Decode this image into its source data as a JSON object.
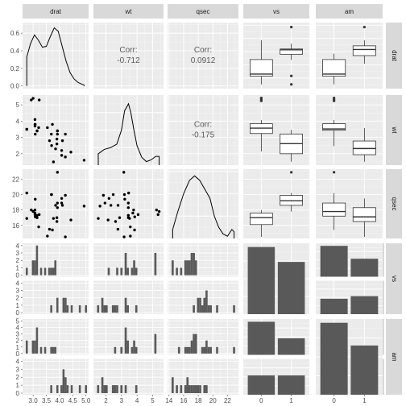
{
  "chart_data": {
    "type": "scatter",
    "variables": [
      "drat",
      "wt",
      "qsec",
      "vs",
      "am"
    ],
    "correlations": [
      {
        "row": "drat",
        "col": "wt",
        "label": "Corr:",
        "value": "-0.712"
      },
      {
        "row": "drat",
        "col": "qsec",
        "label": "Corr:",
        "value": "0.0912"
      },
      {
        "row": "wt",
        "col": "qsec",
        "label": "Corr:",
        "value": "-0.175"
      }
    ],
    "tick_labels": {
      "x": {
        "drat": [
          "3.0",
          "3.5",
          "4.0",
          "4.5",
          "5.0"
        ],
        "wt": [
          "2",
          "3",
          "4",
          "5"
        ],
        "qsec": [
          "14",
          "16",
          "18",
          "20",
          "22"
        ],
        "vs": [
          "0",
          "1"
        ],
        "am": [
          "0",
          "1"
        ]
      },
      "y": {
        "drat": [
          "0.0",
          "0.2",
          "0.4",
          "0.6"
        ],
        "wt": [
          "2",
          "3",
          "4",
          "5"
        ],
        "qsec": [
          "16",
          "18",
          "20",
          "22"
        ],
        "vs_0": [
          "0",
          "1",
          "2",
          "3",
          "4"
        ],
        "vs_1": [
          "0",
          "1",
          "2",
          "3",
          "4"
        ],
        "am_0": [
          "0",
          "1",
          "2",
          "3",
          "4",
          "5"
        ],
        "am_1": [
          "0",
          "1",
          "2",
          "3",
          "4"
        ]
      }
    },
    "facet_levels": {
      "vs": [
        "0",
        "1"
      ],
      "am": [
        "0",
        "1"
      ]
    },
    "x_ranges": {
      "drat": [
        2.6,
        5.1
      ],
      "wt": [
        1.2,
        5.7
      ],
      "qsec": [
        13.8,
        23.5
      ],
      "vs": [
        -0.6,
        1.6
      ],
      "am": [
        -0.6,
        1.6
      ]
    },
    "y_ranges": {
      "drat_density": [
        -0.03,
        0.72
      ],
      "wt": [
        1.3,
        5.6
      ],
      "qsec": [
        14.3,
        23.3
      ],
      "vs_hist": [
        -0.2,
        4.3
      ],
      "am_hist": [
        -0.2,
        5.3
      ]
    },
    "densities": {
      "drat": {
        "x": [
          2.76,
          2.9,
          3.05,
          3.2,
          3.35,
          3.5,
          3.65,
          3.8,
          3.95,
          4.1,
          4.25,
          4.4,
          4.55,
          4.7,
          4.85,
          4.93
        ],
        "y": [
          0.33,
          0.48,
          0.58,
          0.52,
          0.44,
          0.45,
          0.56,
          0.66,
          0.62,
          0.45,
          0.28,
          0.15,
          0.08,
          0.04,
          0.02,
          0.01
        ]
      },
      "wt": {
        "x": [
          1.51,
          1.9,
          2.3,
          2.7,
          3.0,
          3.2,
          3.45,
          3.6,
          3.8,
          4.0,
          4.3,
          4.6,
          4.9,
          5.2,
          5.42
        ],
        "y": [
          0.13,
          0.18,
          0.2,
          0.24,
          0.4,
          0.62,
          0.7,
          0.6,
          0.4,
          0.22,
          0.09,
          0.04,
          0.06,
          0.1,
          0.1
        ]
      },
      "qsec": {
        "x": [
          14.5,
          15.2,
          16.0,
          16.8,
          17.5,
          18.2,
          18.9,
          19.6,
          20.2,
          20.8,
          21.4,
          22.0,
          22.6,
          22.9
        ],
        "y": [
          0.04,
          0.12,
          0.2,
          0.26,
          0.28,
          0.26,
          0.22,
          0.18,
          0.1,
          0.05,
          0.02,
          0.01,
          0.04,
          0.03
        ]
      }
    },
    "density_ylim": {
      "wt": [
        0,
        0.8
      ],
      "qsec": [
        0,
        0.31
      ]
    },
    "points": {
      "wt_vs_drat": [
        [
          3.9,
          2.6
        ],
        [
          3.9,
          2.9
        ],
        [
          3.85,
          2.3
        ],
        [
          3.08,
          3.2
        ],
        [
          3.15,
          3.4
        ],
        [
          2.76,
          3.5
        ],
        [
          3.21,
          3.6
        ],
        [
          3.69,
          3.2
        ],
        [
          3.92,
          3.2
        ],
        [
          3.92,
          3.4
        ],
        [
          3.92,
          3.4
        ],
        [
          3.07,
          4.1
        ],
        [
          3.07,
          3.7
        ],
        [
          3.07,
          3.8
        ],
        [
          2.93,
          5.3
        ],
        [
          3.0,
          5.4
        ],
        [
          3.23,
          5.3
        ],
        [
          4.08,
          2.2
        ],
        [
          4.93,
          1.6
        ],
        [
          4.22,
          1.8
        ],
        [
          3.7,
          2.5
        ],
        [
          2.76,
          3.5
        ],
        [
          3.15,
          3.4
        ],
        [
          3.73,
          3.8
        ],
        [
          3.08,
          3.8
        ],
        [
          4.08,
          1.9
        ],
        [
          4.43,
          2.1
        ],
        [
          3.77,
          1.5
        ],
        [
          4.22,
          3.2
        ],
        [
          3.62,
          2.8
        ],
        [
          3.54,
          3.6
        ],
        [
          4.11,
          2.8
        ]
      ],
      "qsec_vs_drat": [
        [
          3.9,
          16.5
        ],
        [
          3.9,
          17.0
        ],
        [
          3.85,
          18.6
        ],
        [
          3.08,
          19.4
        ],
        [
          3.15,
          17.0
        ],
        [
          2.76,
          20.2
        ],
        [
          3.21,
          15.8
        ],
        [
          3.69,
          20.0
        ],
        [
          3.92,
          22.9
        ],
        [
          3.92,
          18.3
        ],
        [
          3.92,
          18.9
        ],
        [
          3.07,
          17.4
        ],
        [
          3.07,
          17.6
        ],
        [
          3.07,
          18.0
        ],
        [
          2.93,
          18.0
        ],
        [
          3.0,
          17.8
        ],
        [
          3.23,
          17.4
        ],
        [
          4.08,
          19.5
        ],
        [
          4.93,
          18.5
        ],
        [
          4.22,
          19.9
        ],
        [
          3.7,
          20.0
        ],
        [
          2.76,
          16.9
        ],
        [
          3.15,
          17.3
        ],
        [
          3.73,
          15.4
        ],
        [
          3.08,
          17.1
        ],
        [
          4.08,
          18.9
        ],
        [
          4.43,
          16.7
        ],
        [
          3.77,
          16.9
        ],
        [
          4.22,
          14.5
        ],
        [
          3.62,
          15.5
        ],
        [
          3.54,
          14.6
        ],
        [
          4.11,
          18.6
        ]
      ],
      "qsec_vs_wt": [
        [
          2.62,
          16.5
        ],
        [
          2.88,
          17.0
        ],
        [
          2.32,
          18.6
        ],
        [
          3.21,
          19.4
        ],
        [
          3.44,
          17.0
        ],
        [
          3.46,
          20.2
        ],
        [
          3.57,
          15.8
        ],
        [
          3.19,
          20.0
        ],
        [
          3.15,
          22.9
        ],
        [
          3.44,
          18.3
        ],
        [
          3.44,
          18.9
        ],
        [
          4.07,
          17.4
        ],
        [
          3.73,
          17.6
        ],
        [
          3.78,
          18.0
        ],
        [
          5.25,
          18.0
        ],
        [
          5.42,
          17.8
        ],
        [
          5.35,
          17.4
        ],
        [
          2.2,
          19.5
        ],
        [
          1.62,
          18.5
        ],
        [
          1.84,
          19.9
        ],
        [
          2.47,
          20.0
        ],
        [
          3.52,
          16.9
        ],
        [
          3.44,
          17.3
        ],
        [
          3.84,
          15.4
        ],
        [
          3.85,
          17.1
        ],
        [
          1.94,
          18.9
        ],
        [
          2.14,
          16.7
        ],
        [
          1.51,
          16.9
        ],
        [
          3.17,
          14.5
        ],
        [
          2.77,
          15.5
        ],
        [
          3.57,
          14.6
        ],
        [
          2.78,
          18.6
        ]
      ]
    },
    "boxplots": {
      "drat": {
        "vs": {
          "0": {
            "min": 2.76,
            "q1": 3.07,
            "med": 3.15,
            "q3": 3.7,
            "max": 4.43,
            "out": []
          },
          "1": {
            "min": 3.69,
            "q1": 3.9,
            "med": 4.07,
            "q3": 4.1,
            "max": 4.3,
            "out": [
              4.93,
              2.76,
              3.08
            ]
          }
        },
        "am": {
          "0": {
            "min": 2.76,
            "q1": 3.07,
            "med": 3.15,
            "q3": 3.7,
            "max": 3.92,
            "out": []
          },
          "1": {
            "min": 3.54,
            "q1": 3.85,
            "med": 4.08,
            "q3": 4.22,
            "max": 4.43,
            "out": [
              4.93
            ]
          }
        }
      },
      "wt": {
        "vs": {
          "0": {
            "min": 2.14,
            "q1": 3.24,
            "med": 3.57,
            "q3": 3.84,
            "max": 4.07,
            "out": [
              5.25,
              5.42,
              5.35,
              5.25
            ]
          },
          "1": {
            "min": 1.51,
            "q1": 2.0,
            "med": 2.62,
            "q3": 3.21,
            "max": 3.46,
            "out": []
          }
        },
        "am": {
          "0": {
            "min": 2.47,
            "q1": 3.44,
            "med": 3.52,
            "q3": 3.84,
            "max": 4.07,
            "out": [
              5.25,
              5.42,
              5.35,
              5.25
            ]
          },
          "1": {
            "min": 1.51,
            "q1": 1.94,
            "med": 2.32,
            "q3": 2.78,
            "max": 3.57,
            "out": []
          }
        }
      },
      "qsec": {
        "vs": {
          "0": {
            "min": 14.5,
            "q1": 16.1,
            "med": 17.0,
            "q3": 17.6,
            "max": 18.0,
            "out": []
          },
          "1": {
            "min": 17.8,
            "q1": 18.6,
            "med": 19.2,
            "q3": 19.9,
            "max": 20.2,
            "out": [
              22.9
            ]
          }
        },
        "am": {
          "0": {
            "min": 15.4,
            "q1": 17.2,
            "med": 17.8,
            "q3": 18.9,
            "max": 20.2,
            "out": [
              22.9
            ]
          },
          "1": {
            "min": 14.5,
            "q1": 16.5,
            "med": 17.1,
            "q3": 18.3,
            "max": 19.5,
            "out": []
          }
        }
      }
    },
    "histograms": {
      "drat": {
        "breaks": [
          2.76,
          5.0
        ],
        "bins": 30,
        "vs_0": [
          1,
          0,
          0,
          2,
          2,
          4,
          0,
          1,
          0,
          1,
          0,
          1,
          1,
          1,
          2,
          0,
          0,
          0,
          0,
          0,
          0,
          0,
          0,
          0,
          0,
          0,
          0,
          0,
          0,
          0
        ],
        "vs_1": [
          0,
          0,
          0,
          0,
          0,
          0,
          0,
          0,
          0,
          0,
          0,
          0,
          1,
          0,
          0,
          2,
          0,
          0,
          2,
          2,
          1,
          0,
          1,
          0,
          0,
          0,
          1,
          0,
          0,
          1
        ],
        "am_0": [
          2,
          0,
          0,
          2,
          2,
          4,
          0,
          1,
          0,
          1,
          0,
          0,
          1,
          1,
          1,
          0,
          0,
          0,
          0,
          0,
          0,
          0,
          0,
          0,
          0,
          0,
          0,
          0,
          0,
          0
        ],
        "am_1": [
          0,
          0,
          0,
          0,
          0,
          0,
          0,
          0,
          0,
          0,
          0,
          0,
          1,
          0,
          0,
          1,
          0,
          1,
          3,
          2,
          1,
          0,
          1,
          0,
          0,
          0,
          1,
          0,
          0,
          1
        ]
      },
      "wt": {
        "breaks": [
          1.5,
          5.45
        ],
        "bins": 30,
        "vs_0": [
          0,
          0,
          0,
          0,
          0,
          1,
          0,
          0,
          0,
          1,
          0,
          1,
          0,
          3,
          1,
          0,
          1,
          2,
          1,
          0,
          0,
          0,
          0,
          0,
          0,
          0,
          0,
          3,
          0,
          0
        ],
        "vs_1": [
          1,
          0,
          2,
          1,
          1,
          0,
          0,
          1,
          1,
          1,
          0,
          0,
          0,
          2,
          1,
          0,
          0,
          0,
          1,
          0,
          0,
          0,
          0,
          0,
          0,
          0,
          0,
          0,
          0,
          0
        ],
        "am_0": [
          0,
          0,
          0,
          0,
          0,
          0,
          0,
          0,
          1,
          0,
          0,
          1,
          0,
          4,
          2,
          0,
          1,
          2,
          1,
          0,
          0,
          0,
          0,
          0,
          0,
          0,
          0,
          3,
          0,
          0
        ],
        "am_1": [
          1,
          0,
          2,
          1,
          1,
          0,
          0,
          1,
          1,
          1,
          0,
          1,
          0,
          1,
          0,
          0,
          0,
          0,
          1,
          0,
          0,
          0,
          0,
          0,
          0,
          0,
          0,
          0,
          0,
          0
        ]
      },
      "qsec": {
        "breaks": [
          14.5,
          22.9
        ],
        "bins": 30,
        "vs_0": [
          2,
          0,
          1,
          0,
          1,
          0,
          2,
          2,
          2,
          3,
          3,
          2,
          0,
          0,
          0,
          0,
          0,
          0,
          0,
          0,
          0,
          0,
          0,
          0,
          0,
          0,
          0,
          0,
          0,
          0
        ],
        "vs_1": [
          0,
          0,
          0,
          0,
          0,
          0,
          0,
          0,
          0,
          0,
          1,
          0,
          2,
          2,
          1,
          2,
          3,
          1,
          1,
          0,
          0,
          1,
          0,
          0,
          0,
          0,
          0,
          0,
          0,
          1
        ],
        "am_0": [
          0,
          0,
          0,
          1,
          0,
          0,
          1,
          1,
          1,
          2,
          3,
          3,
          0,
          0,
          1,
          1,
          2,
          1,
          1,
          0,
          0,
          1,
          0,
          0,
          0,
          0,
          0,
          0,
          0,
          1
        ],
        "am_1": [
          2,
          0,
          1,
          0,
          1,
          0,
          1,
          2,
          1,
          1,
          1,
          1,
          1,
          1,
          0,
          1,
          1,
          0,
          0,
          0,
          0,
          0,
          0,
          0,
          0,
          0,
          0,
          0,
          0,
          0
        ]
      }
    },
    "counts": {
      "vs_by_vs": [
        18,
        14
      ],
      "am_by_vs": {
        "0": [
          12,
          7
        ],
        "1": [
          6,
          7
        ]
      },
      "vs_by_am": {
        "0": [
          12,
          6
        ],
        "1": [
          7,
          7
        ]
      },
      "am_by_am": [
        19,
        13
      ]
    }
  }
}
